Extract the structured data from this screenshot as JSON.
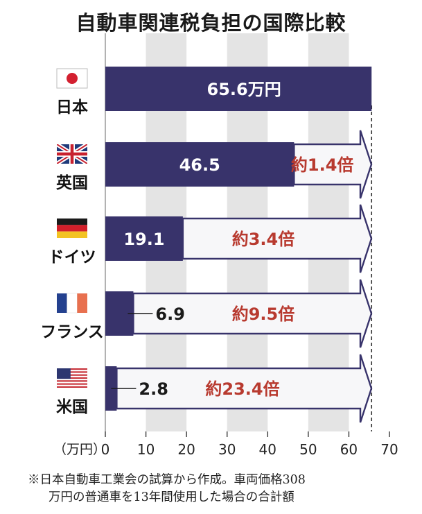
{
  "title": "自動車関連税負担の国際比較",
  "unit_label": "（万円）",
  "note_line1": "※日本自動車工業会の試算から作成。車両価格308",
  "note_line2": "万円の普通車を13年間使用した場合の合計額",
  "colors": {
    "bar": "#38336b",
    "arrow_outline": "#38336b",
    "ratio_text": "#b83a2f",
    "grid_band": "#e4e4e4",
    "value_text_light": "#ffffff",
    "value_text_dark": "#1a1a1a"
  },
  "chart_data": {
    "type": "bar",
    "orientation": "horizontal",
    "xlim": [
      0,
      70
    ],
    "xticks": [
      "0",
      "10",
      "20",
      "30",
      "40",
      "50",
      "60",
      "70"
    ],
    "xlabel": "（万円）",
    "grid": true,
    "reference_value": 65.6,
    "categories": [
      "日本",
      "英国",
      "ドイツ",
      "フランス",
      "米国"
    ],
    "flags": [
      "japan-flag",
      "uk-flag",
      "germany-flag",
      "france-flag",
      "usa-flag"
    ],
    "values": [
      65.6,
      46.5,
      19.1,
      6.9,
      2.8
    ],
    "value_labels": [
      "65.6万円",
      "46.5",
      "19.1",
      "6.9",
      "2.8"
    ],
    "ratio_labels": [
      "",
      "約1.4倍",
      "約3.4倍",
      "約9.5倍",
      "約23.4倍"
    ]
  }
}
